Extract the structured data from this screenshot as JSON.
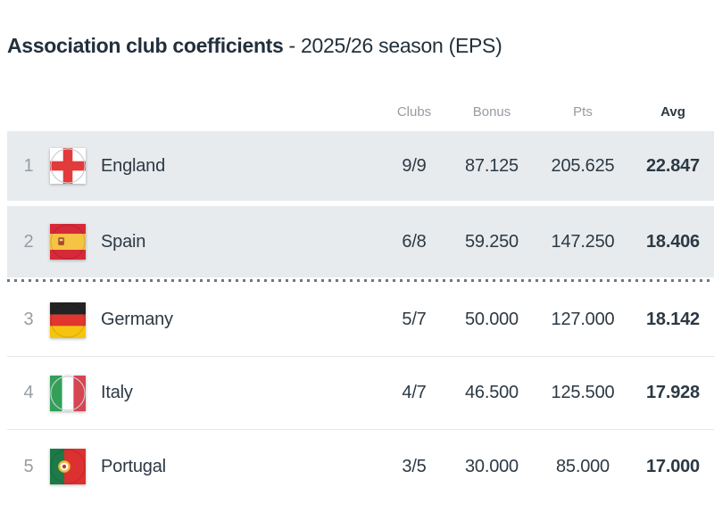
{
  "title": {
    "main": "Association club coefficients",
    "suffix": "- 2025/26 season (EPS)"
  },
  "table": {
    "columns": [
      "Clubs",
      "Bonus",
      "Pts",
      "Avg"
    ],
    "highlighted_ranks": [
      1,
      2
    ],
    "cutoff_after_rank": 2,
    "rows": [
      {
        "rank": "1",
        "country": "England",
        "flag": "england-flag",
        "clubs": "9/9",
        "bonus": "87.125",
        "pts": "205.625",
        "avg": "22.847"
      },
      {
        "rank": "2",
        "country": "Spain",
        "flag": "spain-flag",
        "clubs": "6/8",
        "bonus": "59.250",
        "pts": "147.250",
        "avg": "18.406"
      },
      {
        "rank": "3",
        "country": "Germany",
        "flag": "germany-flag",
        "clubs": "5/7",
        "bonus": "50.000",
        "pts": "127.000",
        "avg": "18.142"
      },
      {
        "rank": "4",
        "country": "Italy",
        "flag": "italy-flag",
        "clubs": "4/7",
        "bonus": "46.500",
        "pts": "125.500",
        "avg": "17.928"
      },
      {
        "rank": "5",
        "country": "Portugal",
        "flag": "portugal-flag",
        "clubs": "3/5",
        "bonus": "30.000",
        "pts": "85.000",
        "avg": "17.000"
      }
    ]
  },
  "colors": {
    "title_text": "#22303c",
    "header_text": "#959ca3",
    "body_text": "#2c3944",
    "rank_text": "#969da4",
    "row_highlight_bg": "#e8ebed",
    "row_border": "#e3e6e8",
    "cutoff_dots": "#6d7780"
  }
}
